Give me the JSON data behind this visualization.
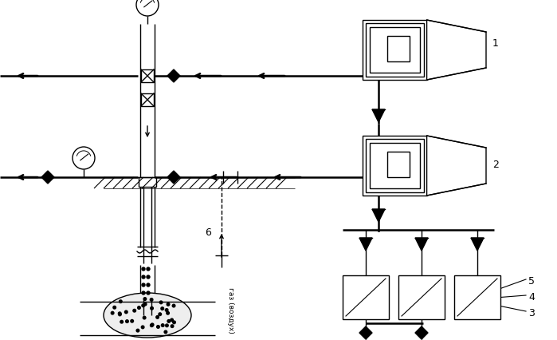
{
  "figsize": [
    6.99,
    4.26
  ],
  "dpi": 100,
  "bg_color": "#ffffff",
  "line_color": "#000000"
}
